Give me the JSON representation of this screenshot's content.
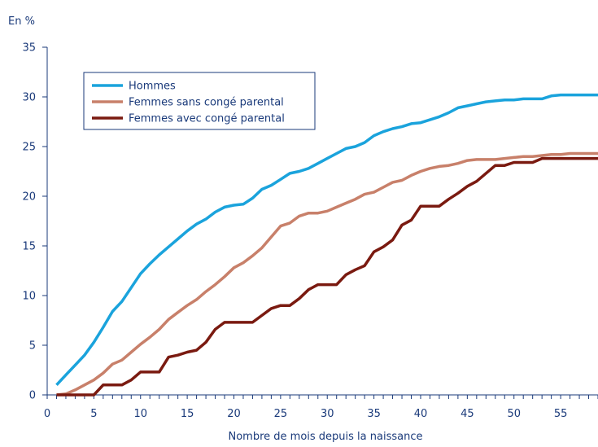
{
  "chart_data": {
    "type": "line",
    "ylabel": "En %",
    "xlabel": "Nombre de mois depuis la naissance",
    "xlim": [
      0,
      59
    ],
    "ylim": [
      0,
      35
    ],
    "x_ticks": [
      0,
      5,
      10,
      15,
      20,
      25,
      30,
      35,
      40,
      45,
      50,
      55
    ],
    "y_ticks": [
      0,
      5,
      10,
      15,
      20,
      25,
      30,
      35
    ],
    "grid": false,
    "legend_position": "top-left",
    "series": [
      {
        "name": "Hommes",
        "color": "#1aa3dc",
        "x": [
          1,
          2,
          3,
          4,
          5,
          6,
          7,
          8,
          9,
          10,
          11,
          12,
          13,
          14,
          15,
          16,
          17,
          18,
          19,
          20,
          21,
          22,
          23,
          24,
          25,
          26,
          27,
          28,
          29,
          30,
          31,
          32,
          33,
          34,
          35,
          36,
          37,
          38,
          39,
          40,
          41,
          42,
          43,
          44,
          45,
          46,
          47,
          48,
          49,
          50,
          51,
          52,
          53,
          54,
          55,
          56,
          57,
          58,
          59
        ],
        "y": [
          1,
          2,
          3,
          4,
          5.3,
          6.8,
          8.4,
          9.4,
          10.8,
          12.2,
          13.2,
          14.1,
          14.9,
          15.7,
          16.5,
          17.2,
          17.7,
          18.4,
          18.9,
          19.1,
          19.2,
          19.8,
          20.7,
          21.1,
          21.7,
          22.3,
          22.5,
          22.8,
          23.3,
          23.8,
          24.3,
          24.8,
          25,
          25.4,
          26.1,
          26.5,
          26.8,
          27,
          27.3,
          27.4,
          27.7,
          28,
          28.4,
          28.9,
          29.1,
          29.3,
          29.5,
          29.6,
          29.7,
          29.7,
          29.8,
          29.8,
          29.8,
          30.1,
          30.2,
          30.2,
          30.2,
          30.2,
          30.2
        ]
      },
      {
        "name": "Femmes sans congé parental",
        "color": "#c8806a",
        "x": [
          1,
          2,
          3,
          4,
          5,
          6,
          7,
          8,
          9,
          10,
          11,
          12,
          13,
          14,
          15,
          16,
          17,
          18,
          19,
          20,
          21,
          22,
          23,
          24,
          25,
          26,
          27,
          28,
          29,
          30,
          31,
          32,
          33,
          34,
          35,
          36,
          37,
          38,
          39,
          40,
          41,
          42,
          43,
          44,
          45,
          46,
          47,
          48,
          49,
          50,
          51,
          52,
          53,
          54,
          55,
          56,
          57,
          58,
          59
        ],
        "y": [
          0,
          0.1,
          0.5,
          1,
          1.5,
          2.2,
          3.1,
          3.5,
          4.3,
          5.1,
          5.8,
          6.6,
          7.6,
          8.3,
          9,
          9.6,
          10.4,
          11.1,
          11.9,
          12.8,
          13.3,
          14,
          14.8,
          15.9,
          17,
          17.3,
          18,
          18.3,
          18.3,
          18.5,
          18.9,
          19.3,
          19.7,
          20.2,
          20.4,
          20.9,
          21.4,
          21.6,
          22.1,
          22.5,
          22.8,
          23,
          23.1,
          23.3,
          23.6,
          23.7,
          23.7,
          23.7,
          23.8,
          23.9,
          24,
          24,
          24.1,
          24.2,
          24.2,
          24.3,
          24.3,
          24.3,
          24.3
        ]
      },
      {
        "name": "Femmes avec congé parental",
        "color": "#7a1a10",
        "x": [
          1,
          2,
          3,
          4,
          5,
          6,
          7,
          8,
          9,
          10,
          11,
          12,
          13,
          14,
          15,
          16,
          17,
          18,
          19,
          20,
          21,
          22,
          23,
          24,
          25,
          26,
          27,
          28,
          29,
          30,
          31,
          32,
          33,
          34,
          35,
          36,
          37,
          38,
          39,
          40,
          41,
          42,
          43,
          44,
          45,
          46,
          47,
          48,
          49,
          50,
          51,
          52,
          53,
          54,
          55,
          56,
          57,
          58,
          59
        ],
        "y": [
          0,
          0,
          0,
          0,
          0,
          1,
          1,
          1,
          1.5,
          2.3,
          2.3,
          2.3,
          3.8,
          4,
          4.3,
          4.5,
          5.3,
          6.6,
          7.3,
          7.3,
          7.3,
          7.3,
          8,
          8.7,
          9,
          9,
          9.7,
          10.6,
          11.1,
          11.1,
          11.1,
          12.1,
          12.6,
          13,
          14.4,
          14.9,
          15.6,
          17.1,
          17.6,
          19,
          19,
          19,
          19.7,
          20.3,
          21,
          21.5,
          22.3,
          23.1,
          23.1,
          23.4,
          23.4,
          23.4,
          23.8,
          23.8,
          23.8,
          23.8,
          23.8,
          23.8,
          23.8
        ]
      }
    ]
  }
}
